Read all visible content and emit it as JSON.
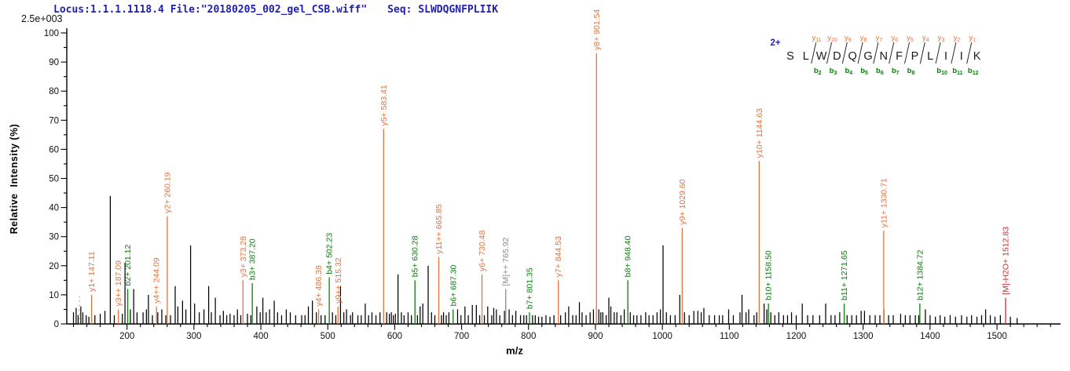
{
  "header": {
    "locus_file": "Locus:1.1.1.1118.4 File:\"20180205_002_gel_CSB.wiff\"",
    "seq": "Seq: SLWDQGNFPLIIK",
    "max_intensity": "2.5e+003"
  },
  "axes": {
    "x_label": "m/z",
    "y_label": "Relative  Intensity (%)",
    "x_min": 110,
    "x_max": 1595,
    "x_major_ticks": [
      200,
      300,
      400,
      500,
      600,
      700,
      800,
      900,
      1000,
      1100,
      1200,
      1300,
      1400,
      1500
    ],
    "x_minor_step": 20,
    "y_min": 0,
    "y_max": 100,
    "y_major_ticks": [
      0,
      10,
      20,
      30,
      40,
      50,
      60,
      70,
      80,
      90,
      100
    ],
    "y_minor_step": 5
  },
  "colors": {
    "y_ion": "#E2743E",
    "b_ion": "#0E7A0E",
    "precursor": "#8C8C8C",
    "precursor_loss": "#D22C2C",
    "noise": "#000000",
    "dashed_peak": "#EDAC7E",
    "axis": "#000000",
    "header_text": "#2121AE",
    "charge": "#1F1FD4",
    "letter": "#1a1a1a"
  },
  "sequence_diagram": {
    "charge": "2+",
    "residues": [
      "S",
      "L",
      "W",
      "D",
      "Q",
      "G",
      "N",
      "F",
      "P",
      "L",
      "I",
      "I",
      "K"
    ],
    "cleavages": [
      {
        "after": 2,
        "y": "y11",
        "b": "b2"
      },
      {
        "after": 3,
        "y": "y10",
        "b": "b3"
      },
      {
        "after": 4,
        "y": "y9",
        "b": "b4"
      },
      {
        "after": 5,
        "y": "y8",
        "b": "b5"
      },
      {
        "after": 6,
        "y": "y7",
        "b": "b6"
      },
      {
        "after": 7,
        "y": "y6",
        "b": "b7"
      },
      {
        "after": 8,
        "y": "y5",
        "b": "b8"
      },
      {
        "after": 9,
        "y": "y4",
        "b": null
      },
      {
        "after": 10,
        "y": "y3",
        "b": "b10"
      },
      {
        "after": 11,
        "y": "y2",
        "b": "b11"
      },
      {
        "after": 12,
        "y": "y1",
        "b": "b12"
      }
    ]
  },
  "chart_data": {
    "type": "bar",
    "subtype": "ms2-stick-spectrum",
    "xlabel": "m/z",
    "ylabel": "Relative  Intensity (%)",
    "xlim": [
      110,
      1595
    ],
    "ylim": [
      0,
      100
    ],
    "max_absolute_intensity": "2.5e+003",
    "labeled_peaks": [
      {
        "label": "y1+ 147.11",
        "type": "y",
        "mz": 147.11,
        "intensity": 10
      },
      {
        "label": "y3++ 187.09",
        "type": "y",
        "mz": 187.09,
        "intensity": 5
      },
      {
        "label": "b2+ 201.12",
        "type": "b",
        "mz": 201.12,
        "intensity": 12
      },
      {
        "label": "y4++ 244.09",
        "type": "y",
        "mz": 244.09,
        "intensity": 6
      },
      {
        "label": "y2+ 260.19",
        "type": "y",
        "mz": 260.19,
        "intensity": 37
      },
      {
        "label": "y3+ 373.28",
        "type": "y",
        "mz": 373.28,
        "intensity": 15
      },
      {
        "label": "b3+ 387.20",
        "type": "b",
        "mz": 387.2,
        "intensity": 14
      },
      {
        "label": "y4+ 486.38",
        "type": "y",
        "mz": 486.38,
        "intensity": 5
      },
      {
        "label": "b4+ 502.23",
        "type": "b",
        "mz": 502.23,
        "intensity": 16
      },
      {
        "label": "y9++ 515.32",
        "type": "y",
        "mz": 515.32,
        "intensity": 6
      },
      {
        "label": "y5+ 583.41",
        "type": "y",
        "mz": 583.41,
        "intensity": 67
      },
      {
        "label": "b5+ 630.28",
        "type": "b",
        "mz": 630.28,
        "intensity": 15
      },
      {
        "label": "y11++ 665.85",
        "type": "y",
        "mz": 665.85,
        "intensity": 23
      },
      {
        "label": "b6+ 687.30",
        "type": "b",
        "mz": 687.3,
        "intensity": 5
      },
      {
        "label": "y6+ 730.48",
        "type": "y",
        "mz": 730.48,
        "intensity": 17
      },
      {
        "label": "[M]++ 765.92",
        "type": "M",
        "mz": 765.92,
        "intensity": 12
      },
      {
        "label": "b7+ 801.35",
        "type": "b",
        "mz": 801.35,
        "intensity": 4
      },
      {
        "label": "y7+ 844.53",
        "type": "y",
        "mz": 844.53,
        "intensity": 15
      },
      {
        "label": "y8+ 901.54",
        "type": "y",
        "mz": 901.54,
        "intensity": 93
      },
      {
        "label": "b8+ 948.40",
        "type": "b",
        "mz": 948.4,
        "intensity": 15
      },
      {
        "label": "y9+ 1029.60",
        "type": "y",
        "mz": 1029.6,
        "intensity": 33
      },
      {
        "label": "y10+ 1144.63",
        "type": "y",
        "mz": 1144.63,
        "intensity": 56
      },
      {
        "label": "b10+ 1158.50",
        "type": "b",
        "mz": 1158.5,
        "intensity": 7
      },
      {
        "label": "b11+ 1271.65",
        "type": "b",
        "mz": 1271.65,
        "intensity": 7
      },
      {
        "label": "y11+ 1330.71",
        "type": "y",
        "mz": 1330.71,
        "intensity": 32
      },
      {
        "label": "b12+ 1384.72",
        "type": "b",
        "mz": 1384.72,
        "intensity": 7
      },
      {
        "label": "[M]-H2O+ 1512.83",
        "type": "M-H2O",
        "mz": 1512.83,
        "intensity": 9
      }
    ],
    "dashed_peaks": [
      {
        "mz": 129,
        "intensity": 10
      }
    ],
    "noise_peaks": [
      [
        120,
        4
      ],
      [
        124,
        5.5
      ],
      [
        127,
        3
      ],
      [
        131,
        6
      ],
      [
        134,
        4
      ],
      [
        139,
        3
      ],
      [
        143,
        2.5
      ],
      [
        152,
        3
      ],
      [
        160,
        3.5
      ],
      [
        167,
        4.5
      ],
      [
        175,
        44
      ],
      [
        181,
        3
      ],
      [
        193,
        3.5
      ],
      [
        197,
        21
      ],
      [
        205,
        5
      ],
      [
        210,
        12
      ],
      [
        215,
        4
      ],
      [
        224,
        4
      ],
      [
        229,
        5
      ],
      [
        232,
        10
      ],
      [
        238,
        3
      ],
      [
        246,
        4
      ],
      [
        252,
        5
      ],
      [
        258,
        3
      ],
      [
        265,
        3
      ],
      [
        272,
        13
      ],
      [
        276,
        6
      ],
      [
        283,
        8
      ],
      [
        288,
        5
      ],
      [
        295,
        27
      ],
      [
        301,
        7
      ],
      [
        308,
        4
      ],
      [
        315,
        5
      ],
      [
        322,
        13
      ],
      [
        326,
        4
      ],
      [
        332,
        9
      ],
      [
        339,
        3
      ],
      [
        344,
        4.5
      ],
      [
        349,
        3
      ],
      [
        354,
        3.5
      ],
      [
        360,
        3
      ],
      [
        365,
        5
      ],
      [
        370,
        3
      ],
      [
        380,
        3.5
      ],
      [
        385,
        3
      ],
      [
        394,
        6
      ],
      [
        399,
        4
      ],
      [
        403,
        9
      ],
      [
        408,
        4
      ],
      [
        413,
        5
      ],
      [
        420,
        8
      ],
      [
        425,
        4
      ],
      [
        431,
        3
      ],
      [
        438,
        5
      ],
      [
        444,
        4
      ],
      [
        452,
        3
      ],
      [
        461,
        3
      ],
      [
        466,
        3
      ],
      [
        471,
        6
      ],
      [
        477,
        8
      ],
      [
        483,
        4
      ],
      [
        490,
        3
      ],
      [
        496,
        3
      ],
      [
        507,
        4
      ],
      [
        512,
        3
      ],
      [
        519,
        13
      ],
      [
        524,
        4
      ],
      [
        528,
        5
      ],
      [
        534,
        3
      ],
      [
        537,
        4
      ],
      [
        545,
        3
      ],
      [
        550,
        3
      ],
      [
        556,
        7
      ],
      [
        561,
        3
      ],
      [
        566,
        4
      ],
      [
        572,
        3
      ],
      [
        578,
        4
      ],
      [
        588,
        4
      ],
      [
        592,
        3.5
      ],
      [
        595,
        4
      ],
      [
        598,
        3
      ],
      [
        601,
        3.5
      ],
      [
        605,
        17
      ],
      [
        610,
        4
      ],
      [
        614,
        3
      ],
      [
        620,
        4
      ],
      [
        625,
        3
      ],
      [
        634,
        3
      ],
      [
        638,
        6
      ],
      [
        642,
        7
      ],
      [
        650,
        20
      ],
      [
        655,
        4
      ],
      [
        660,
        3
      ],
      [
        670,
        3
      ],
      [
        673,
        4
      ],
      [
        677,
        3
      ],
      [
        681,
        4
      ],
      [
        694,
        5
      ],
      [
        699,
        3
      ],
      [
        705,
        6
      ],
      [
        710,
        3
      ],
      [
        716,
        6.5
      ],
      [
        722,
        6.5
      ],
      [
        727,
        3
      ],
      [
        734,
        3
      ],
      [
        739,
        6
      ],
      [
        745,
        3
      ],
      [
        748,
        5.5
      ],
      [
        752,
        5
      ],
      [
        757,
        3
      ],
      [
        764,
        4.5
      ],
      [
        771,
        5
      ],
      [
        776,
        3
      ],
      [
        781,
        4.5
      ],
      [
        788,
        3
      ],
      [
        793,
        3
      ],
      [
        797,
        3
      ],
      [
        806,
        3
      ],
      [
        810,
        3
      ],
      [
        815,
        2.5
      ],
      [
        820,
        2.5
      ],
      [
        826,
        3
      ],
      [
        832,
        2.5
      ],
      [
        838,
        3
      ],
      [
        848,
        3
      ],
      [
        855,
        4
      ],
      [
        860,
        6
      ],
      [
        866,
        3
      ],
      [
        871,
        3
      ],
      [
        876,
        7.5
      ],
      [
        880,
        4
      ],
      [
        886,
        3
      ],
      [
        892,
        4
      ],
      [
        897,
        5
      ],
      [
        905,
        5
      ],
      [
        908,
        4
      ],
      [
        911,
        4
      ],
      [
        916,
        3
      ],
      [
        920,
        9
      ],
      [
        923,
        6
      ],
      [
        928,
        4
      ],
      [
        932,
        4
      ],
      [
        938,
        3
      ],
      [
        943,
        5
      ],
      [
        952,
        4
      ],
      [
        957,
        3
      ],
      [
        962,
        3
      ],
      [
        968,
        3
      ],
      [
        975,
        4
      ],
      [
        980,
        3
      ],
      [
        986,
        3
      ],
      [
        992,
        4
      ],
      [
        997,
        5
      ],
      [
        1001,
        27
      ],
      [
        1006,
        4
      ],
      [
        1012,
        3
      ],
      [
        1019,
        3
      ],
      [
        1026,
        10
      ],
      [
        1033,
        4
      ],
      [
        1040,
        3
      ],
      [
        1047,
        4.5
      ],
      [
        1053,
        4.5
      ],
      [
        1058,
        4
      ],
      [
        1062,
        5.5
      ],
      [
        1070,
        3
      ],
      [
        1078,
        3
      ],
      [
        1085,
        3
      ],
      [
        1090,
        3
      ],
      [
        1099,
        5
      ],
      [
        1106,
        3
      ],
      [
        1116,
        4
      ],
      [
        1119,
        10
      ],
      [
        1125,
        4
      ],
      [
        1129,
        5
      ],
      [
        1137,
        3
      ],
      [
        1141,
        4
      ],
      [
        1152,
        7
      ],
      [
        1156,
        5
      ],
      [
        1162,
        4
      ],
      [
        1168,
        3
      ],
      [
        1174,
        4
      ],
      [
        1181,
        3
      ],
      [
        1187,
        3
      ],
      [
        1193,
        4
      ],
      [
        1200,
        3
      ],
      [
        1209,
        7
      ],
      [
        1217,
        3
      ],
      [
        1225,
        3
      ],
      [
        1235,
        3
      ],
      [
        1244,
        7
      ],
      [
        1252,
        3
      ],
      [
        1258,
        3
      ],
      [
        1265,
        4
      ],
      [
        1276,
        3
      ],
      [
        1283,
        3
      ],
      [
        1290,
        3
      ],
      [
        1297,
        4.5
      ],
      [
        1302,
        4.5
      ],
      [
        1310,
        3
      ],
      [
        1318,
        3
      ],
      [
        1325,
        3
      ],
      [
        1331,
        5
      ],
      [
        1338,
        3
      ],
      [
        1345,
        3
      ],
      [
        1356,
        3.5
      ],
      [
        1363,
        3
      ],
      [
        1370,
        3
      ],
      [
        1378,
        3
      ],
      [
        1383,
        3
      ],
      [
        1393,
        5
      ],
      [
        1400,
        3
      ],
      [
        1408,
        2.5
      ],
      [
        1415,
        3
      ],
      [
        1422,
        2.5
      ],
      [
        1430,
        3
      ],
      [
        1438,
        2.5
      ],
      [
        1447,
        3
      ],
      [
        1455,
        2.5
      ],
      [
        1462,
        3
      ],
      [
        1470,
        2.5
      ],
      [
        1477,
        3
      ],
      [
        1483,
        5
      ],
      [
        1490,
        3
      ],
      [
        1497,
        2.5
      ],
      [
        1505,
        3
      ],
      [
        1520,
        2.5
      ],
      [
        1530,
        2
      ]
    ]
  }
}
